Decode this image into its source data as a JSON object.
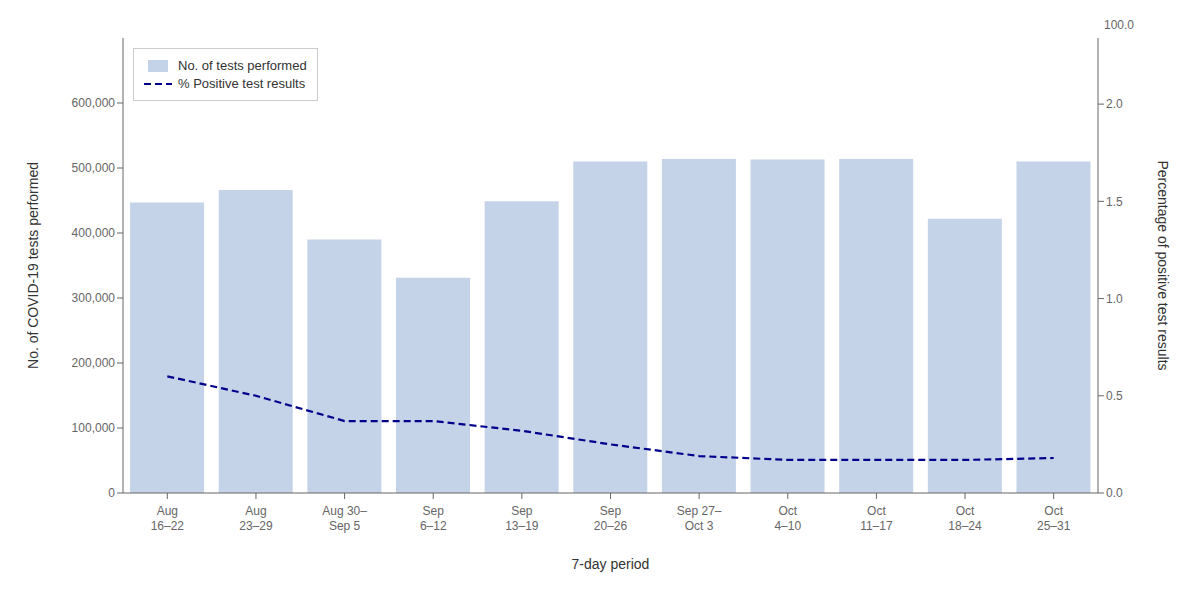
{
  "chart_data": {
    "type": "bar",
    "xlabel": "7-day period",
    "ylabel": "No. of COVID-19 tests performed",
    "y2label": "Percentage of positive test results",
    "categories": [
      "Aug\n16–22",
      "Aug\n23–29",
      "Aug 30–\nSep 5",
      "Sep\n6–12",
      "Sep\n13–19",
      "Sep\n20–26",
      "Sep 27–\nOct 3",
      "Oct\n4–10",
      "Oct\n11–17",
      "Oct\n18–24",
      "Oct\n25–31"
    ],
    "series": [
      {
        "name": "No. of tests performed",
        "type": "bar",
        "color": "#c5d3e8",
        "values": [
          447000,
          466000,
          390000,
          331000,
          449000,
          510000,
          514000,
          513000,
          514000,
          422000,
          510000
        ]
      },
      {
        "name": "% Positive test results",
        "type": "line",
        "color": "#00008b",
        "line_style": "dashed",
        "axis": "y2",
        "values": [
          0.6,
          0.5,
          0.37,
          0.37,
          0.32,
          0.25,
          0.19,
          0.17,
          0.17,
          0.17,
          0.18
        ]
      }
    ],
    "ylim": [
      0,
      700000
    ],
    "yticks": [
      0,
      {
        "value": 100000,
        "label": "100,000"
      },
      {
        "value": 200000,
        "label": "200,000"
      },
      {
        "value": 300000,
        "label": "300,000"
      },
      {
        "value": 400000,
        "label": "400,000"
      },
      {
        "value": 500000,
        "label": "500,000"
      },
      {
        "value": 600000,
        "label": "600,000"
      }
    ],
    "y2lim": [
      0,
      2.34
    ],
    "y2ticks": [
      {
        "value": 0,
        "label": "0.0"
      },
      0.5,
      {
        "value": 1,
        "label": "1.0"
      },
      1.5,
      {
        "value": 2,
        "label": "2.0"
      }
    ],
    "annotations": [
      "100.0"
    ],
    "legend": "upper left",
    "grid": false
  }
}
